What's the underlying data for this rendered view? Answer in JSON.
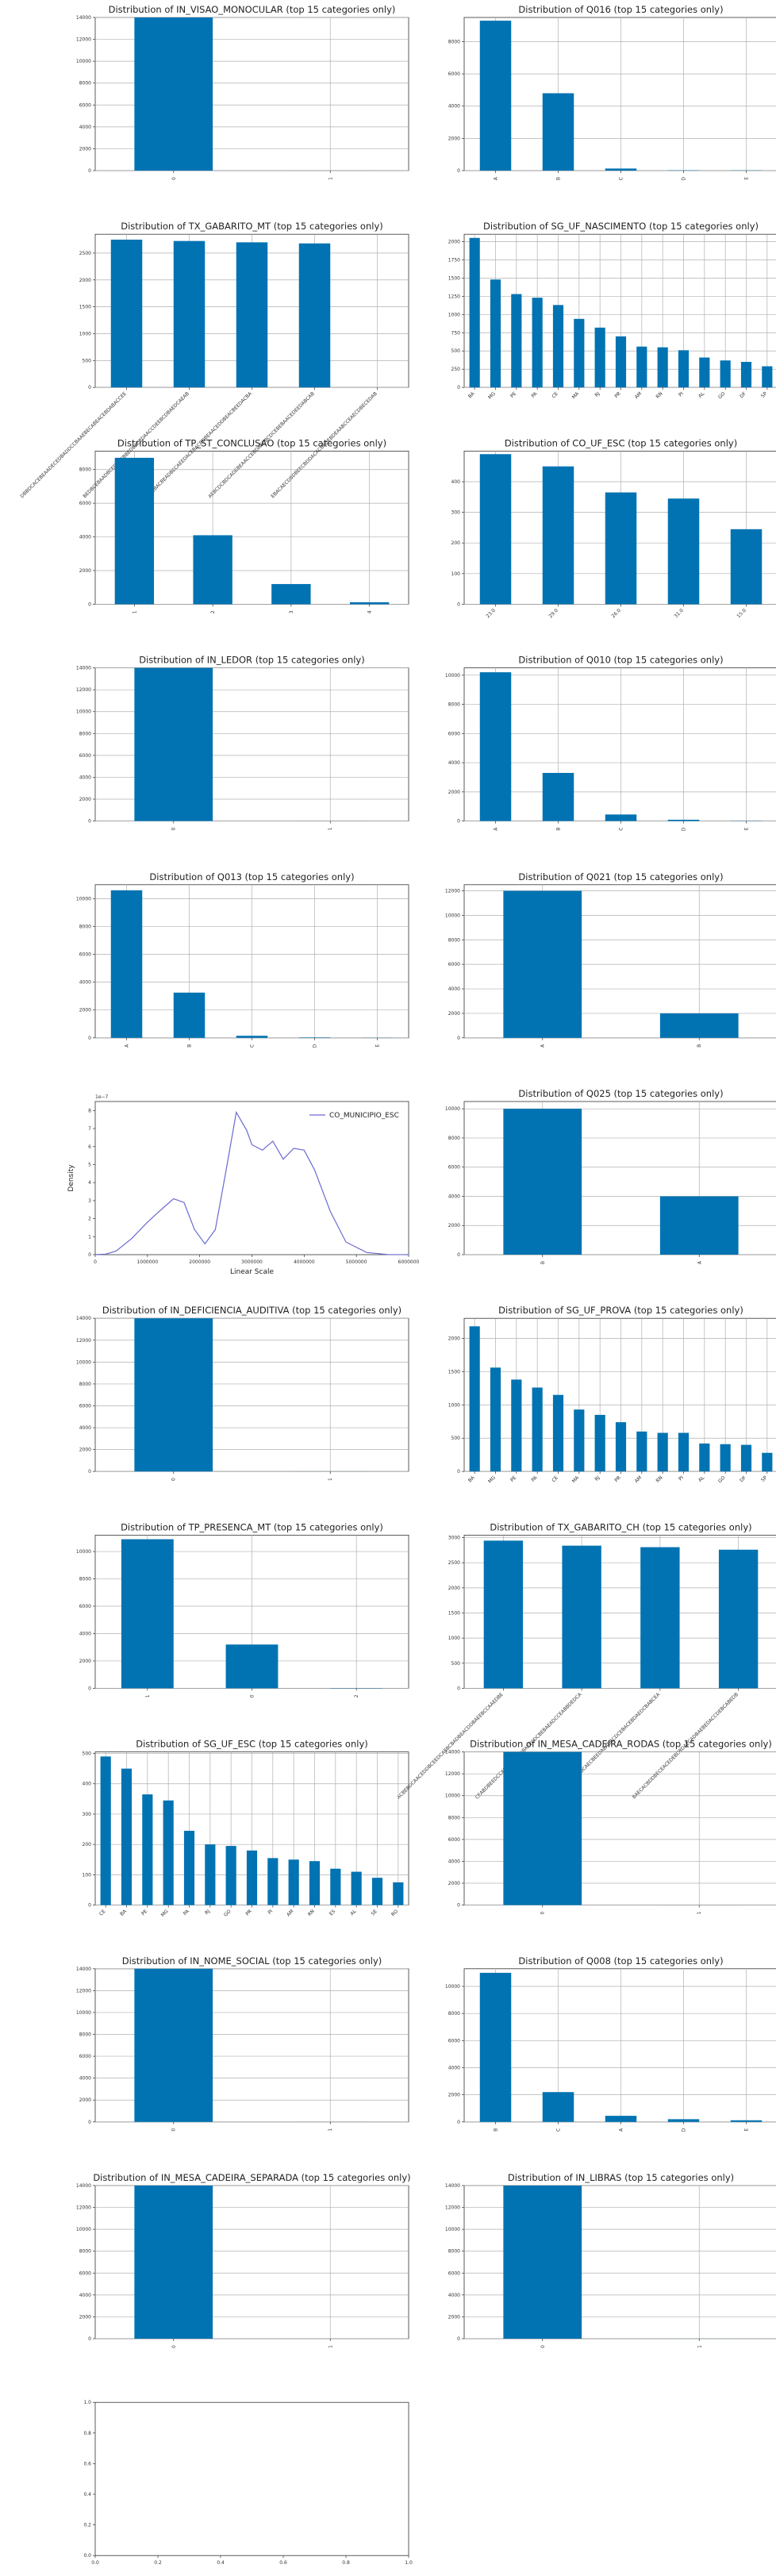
{
  "colors": {
    "bar": "#0173b2",
    "grid": "#b0b0b0",
    "axis": "#333333",
    "kde": "#6a6ad0"
  },
  "chart_data": [
    {
      "type": "bar",
      "title": "Distribution of IN_VISAO_MONOCULAR (top 15 categories only)",
      "categories": [
        "0",
        "1"
      ],
      "values": [
        14000,
        1
      ],
      "yticks": [
        0,
        2000,
        4000,
        6000,
        8000,
        10000,
        12000,
        14000
      ],
      "ylim": [
        0,
        14000
      ],
      "grid": true,
      "xrot": "vertical"
    },
    {
      "type": "bar",
      "title": "Distribution of Q016 (top 15 categories only)",
      "categories": [
        "A",
        "B",
        "C",
        "D",
        "E"
      ],
      "values": [
        9300,
        4800,
        130,
        20,
        15
      ],
      "yticks": [
        0,
        2000,
        4000,
        6000,
        8000
      ],
      "ylim": [
        0,
        9500
      ],
      "grid": true,
      "xrot": "vertical"
    },
    {
      "type": "bar",
      "title": "Distribution of TX_GABARITO_MT (top 15 categories only)",
      "categories": [
        "DBBDCACEBEAADECEDBADDCCBAAEBECABEACEBDABACCEE",
        "BEDBCEBAADBCEDACEBBEDBACEDAACCDEEBCDBAEDCAEAB",
        "CDCBACBEADBECAEEDACEBACBDBEAACEDDBEACBEEDACBA",
        "AEBCDCBDCADEBEAACCEBDAEDBCDCEBEBAACEDEEDABCAB",
        "EBACAECDBDBEECBDDACACBADEBDEAABCCEAECDBECEDAB"
      ],
      "values": [
        2750,
        2725,
        2700,
        2680,
        0
      ],
      "yticks": [
        0,
        500,
        1000,
        1500,
        2000,
        2500
      ],
      "ylim": [
        0,
        2850
      ],
      "grid": true,
      "xrot": "diag"
    },
    {
      "type": "bar",
      "title": "Distribution of SG_UF_NASCIMENTO (top 15 categories only)",
      "categories": [
        "BA",
        "MG",
        "PE",
        "PA",
        "CE",
        "MA",
        "RJ",
        "PR",
        "AM",
        "RN",
        "PI",
        "AL",
        "GO",
        "DF",
        "SP"
      ],
      "values": [
        2050,
        1480,
        1280,
        1230,
        1130,
        940,
        820,
        700,
        560,
        550,
        510,
        410,
        370,
        350,
        290
      ],
      "yticks": [
        0,
        250,
        500,
        750,
        1000,
        1250,
        1500,
        1750,
        2000
      ],
      "ylim": [
        0,
        2100
      ],
      "grid": true,
      "xrot": "diag"
    },
    {
      "type": "bar",
      "title": "Distribution of TP_ST_CONCLUSAO (top 15 categories only)",
      "categories": [
        "1",
        "2",
        "3",
        "4"
      ],
      "values": [
        8700,
        4100,
        1200,
        120
      ],
      "yticks": [
        0,
        2000,
        4000,
        6000,
        8000
      ],
      "ylim": [
        0,
        9100
      ],
      "grid": true,
      "xrot": "vertical"
    },
    {
      "type": "bar",
      "title": "Distribution of CO_UF_ESC (top 15 categories only)",
      "categories": [
        "23.0",
        "29.0",
        "26.0",
        "31.0",
        "15.0"
      ],
      "values": [
        490,
        450,
        365,
        345,
        245
      ],
      "yticks": [
        0,
        100,
        200,
        300,
        400
      ],
      "ylim": [
        0,
        500
      ],
      "grid": true,
      "xrot": "diag"
    },
    {
      "type": "bar",
      "title": "Distribution of IN_LEDOR (top 15 categories only)",
      "categories": [
        "0",
        "1"
      ],
      "values": [
        14000,
        2
      ],
      "yticks": [
        0,
        2000,
        4000,
        6000,
        8000,
        10000,
        12000,
        14000
      ],
      "ylim": [
        0,
        14000
      ],
      "grid": true,
      "xrot": "vertical"
    },
    {
      "type": "bar",
      "title": "Distribution of Q010 (top 15 categories only)",
      "categories": [
        "A",
        "B",
        "C",
        "D",
        "E"
      ],
      "values": [
        10200,
        3300,
        450,
        90,
        15
      ],
      "yticks": [
        0,
        2000,
        4000,
        6000,
        8000,
        10000
      ],
      "ylim": [
        0,
        10500
      ],
      "grid": true,
      "xrot": "vertical"
    },
    {
      "type": "bar",
      "title": "Distribution of Q013 (top 15 categories only)",
      "categories": [
        "A",
        "B",
        "C",
        "D",
        "E"
      ],
      "values": [
        10600,
        3250,
        150,
        30,
        10
      ],
      "yticks": [
        0,
        2000,
        4000,
        6000,
        8000,
        10000
      ],
      "ylim": [
        0,
        11000
      ],
      "grid": true,
      "xrot": "vertical"
    },
    {
      "type": "bar",
      "title": "Distribution of Q021 (top 15 categories only)",
      "categories": [
        "A",
        "B"
      ],
      "values": [
        12000,
        2000
      ],
      "yticks": [
        0,
        2000,
        4000,
        6000,
        8000,
        10000,
        12000
      ],
      "ylim": [
        0,
        12500
      ],
      "grid": true,
      "xrot": "vertical"
    },
    {
      "type": "kde",
      "title": "",
      "xlabel": "Linear Scale",
      "ylabel": "Density",
      "offset_text": "1e−7",
      "legend": "CO_MUNICIPIO_ESC",
      "xlim": [
        0,
        6000000
      ],
      "ylim": [
        0,
        8.5e-07
      ],
      "xticks": [
        0,
        1000000,
        2000000,
        3000000,
        4000000,
        5000000,
        6000000
      ],
      "xtick_labels": [
        "0",
        "1000000",
        "2000000",
        "3000000",
        "4000000",
        "5000000",
        "6000000"
      ],
      "yticks": [
        0,
        1e-07,
        2e-07,
        3e-07,
        4e-07,
        5e-07,
        6e-07,
        7e-07,
        8e-07
      ],
      "ytick_labels": [
        "0",
        "1",
        "2",
        "3",
        "4",
        "5",
        "6",
        "7",
        "8"
      ],
      "x": [
        0,
        200000,
        400000,
        700000,
        1000000,
        1300000,
        1500000,
        1700000,
        1900000,
        2100000,
        2300000,
        2500000,
        2700000,
        2900000,
        3000000,
        3200000,
        3400000,
        3600000,
        3800000,
        4000000,
        4200000,
        4500000,
        4800000,
        5200000,
        5600000,
        6000000
      ],
      "y": [
        0,
        3e-09,
        2e-08,
        9e-08,
        1.8e-07,
        2.6e-07,
        3.1e-07,
        2.9e-07,
        1.4e-07,
        6e-08,
        1.4e-07,
        4.6e-07,
        7.9e-07,
        6.9e-07,
        6.1e-07,
        5.8e-07,
        6.3e-07,
        5.3e-07,
        5.9e-07,
        5.8e-07,
        4.7e-07,
        2.4e-07,
        7e-08,
        1.2e-08,
        1e-09,
        0
      ]
    },
    {
      "type": "bar",
      "title": "Distribution of Q025 (top 15 categories only)",
      "categories": [
        "B",
        "A"
      ],
      "values": [
        10000,
        4000
      ],
      "yticks": [
        0,
        2000,
        4000,
        6000,
        8000,
        10000
      ],
      "ylim": [
        0,
        10500
      ],
      "grid": true,
      "xrot": "vertical"
    },
    {
      "type": "bar",
      "title": "Distribution of IN_DEFICIENCIA_AUDITIVA (top 15 categories only)",
      "categories": [
        "0",
        "1"
      ],
      "values": [
        14000,
        5
      ],
      "yticks": [
        0,
        2000,
        4000,
        6000,
        8000,
        10000,
        12000,
        14000
      ],
      "ylim": [
        0,
        14000
      ],
      "grid": true,
      "xrot": "vertical"
    },
    {
      "type": "bar",
      "title": "Distribution of SG_UF_PROVA (top 15 categories only)",
      "categories": [
        "BA",
        "MG",
        "PE",
        "PA",
        "CE",
        "MA",
        "RJ",
        "PR",
        "AM",
        "RN",
        "PI",
        "AL",
        "GO",
        "DF",
        "SP"
      ],
      "values": [
        2180,
        1560,
        1380,
        1260,
        1150,
        930,
        850,
        740,
        600,
        580,
        580,
        420,
        410,
        400,
        280
      ],
      "yticks": [
        0,
        500,
        1000,
        1500,
        2000
      ],
      "ylim": [
        0,
        2300
      ],
      "grid": true,
      "xrot": "diag"
    },
    {
      "type": "bar",
      "title": "Distribution of TP_PRESENCA_MT (top 15 categories only)",
      "categories": [
        "1",
        "0",
        "2"
      ],
      "values": [
        10900,
        3200,
        20
      ],
      "yticks": [
        0,
        2000,
        4000,
        6000,
        8000,
        10000
      ],
      "ylim": [
        0,
        11200
      ],
      "grid": true,
      "xrot": "vertical"
    },
    {
      "type": "bar",
      "title": "Distribution of TX_GABARITO_CH (top 15 categories only)",
      "categories": [
        "ACBEBDCAACEDDBCEEDCAEBCBADBEACDDBAEEBCCAAEDBE",
        "CEABDBEEDCCABDBAEACDBAEECDCBEBAEADCCEABBDEDCA",
        "DCEBACDDBEABCAECBEEDAEADBCDCEBACEBDAEDCBABCEA",
        "BAECACBDDBECEACEDEBCBDAECADBAEBEDACCDEBCABEDB"
      ],
      "values": [
        2940,
        2840,
        2810,
        2760
      ],
      "yticks": [
        0,
        500,
        1000,
        1500,
        2000,
        2500,
        3000
      ],
      "ylim": [
        0,
        3050
      ],
      "grid": true,
      "xrot": "diag"
    },
    {
      "type": "bar",
      "title": "Distribution of SG_UF_ESC (top 15 categories only)",
      "categories": [
        "CE",
        "BA",
        "PE",
        "MG",
        "PA",
        "RJ",
        "GO",
        "PR",
        "PI",
        "AM",
        "RN",
        "ES",
        "AL",
        "SE",
        "RO"
      ],
      "values": [
        490,
        450,
        365,
        345,
        245,
        200,
        195,
        180,
        155,
        150,
        145,
        120,
        110,
        90,
        75
      ],
      "yticks": [
        0,
        100,
        200,
        300,
        400,
        500
      ],
      "ylim": [
        0,
        505
      ],
      "grid": true,
      "xrot": "diag"
    },
    {
      "type": "bar",
      "title": "Distribution of IN_MESA_CADEIRA_RODAS (top 15 categories only)",
      "categories": [
        "0",
        "1"
      ],
      "values": [
        14000,
        2
      ],
      "yticks": [
        0,
        2000,
        4000,
        6000,
        8000,
        10000,
        12000,
        14000
      ],
      "ylim": [
        0,
        14000
      ],
      "grid": true,
      "xrot": "vertical"
    },
    {
      "type": "bar",
      "title": "Distribution of IN_NOME_SOCIAL (top 15 categories only)",
      "categories": [
        "0",
        "1"
      ],
      "values": [
        14000,
        3
      ],
      "yticks": [
        0,
        2000,
        4000,
        6000,
        8000,
        10000,
        12000,
        14000
      ],
      "ylim": [
        0,
        14000
      ],
      "grid": true,
      "xrot": "vertical"
    },
    {
      "type": "bar",
      "title": "Distribution of Q008 (top 15 categories only)",
      "categories": [
        "B",
        "C",
        "A",
        "D",
        "E"
      ],
      "values": [
        11000,
        2200,
        450,
        200,
        120
      ],
      "yticks": [
        0,
        2000,
        4000,
        6000,
        8000,
        10000
      ],
      "ylim": [
        0,
        11300
      ],
      "grid": true,
      "xrot": "vertical"
    },
    {
      "type": "bar",
      "title": "Distribution of IN_MESA_CADEIRA_SEPARADA (top 15 categories only)",
      "categories": [
        "0",
        "1"
      ],
      "values": [
        14000,
        1
      ],
      "yticks": [
        0,
        2000,
        4000,
        6000,
        8000,
        10000,
        12000,
        14000
      ],
      "ylim": [
        0,
        14000
      ],
      "grid": true,
      "xrot": "vertical"
    },
    {
      "type": "bar",
      "title": "Distribution of IN_LIBRAS (top 15 categories only)",
      "categories": [
        "0",
        "1"
      ],
      "values": [
        14000,
        4
      ],
      "yticks": [
        0,
        2000,
        4000,
        6000,
        8000,
        10000,
        12000,
        14000
      ],
      "ylim": [
        0,
        14000
      ],
      "grid": true,
      "xrot": "vertical"
    },
    {
      "type": "empty",
      "title": "",
      "xlim": [
        0,
        1
      ],
      "ylim": [
        0,
        1
      ],
      "xticks": [
        0,
        0.2,
        0.4,
        0.6,
        0.8,
        1.0
      ],
      "xtick_labels": [
        "0.0",
        "0.2",
        "0.4",
        "0.6",
        "0.8",
        "1.0"
      ],
      "yticks": [
        0,
        0.2,
        0.4,
        0.6,
        0.8,
        1.0
      ],
      "ytick_labels": [
        "0.0",
        "0.2",
        "0.4",
        "0.6",
        "0.8",
        "1.0"
      ]
    }
  ]
}
